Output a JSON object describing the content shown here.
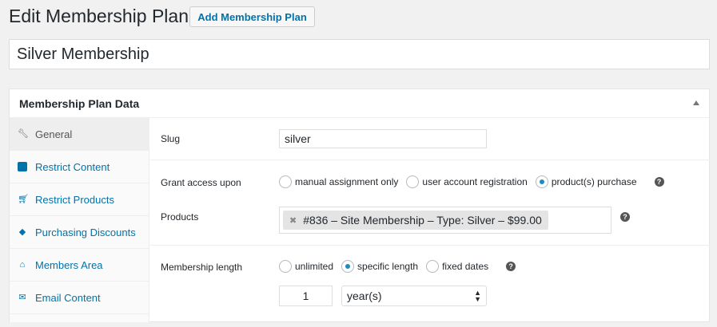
{
  "header": {
    "title": "Edit Membership Plan",
    "add_button": "Add Membership Plan"
  },
  "plan_title": "Silver Membership",
  "panel": {
    "title": "Membership Plan Data"
  },
  "tabs": [
    {
      "label": "General",
      "icon": "wrench-icon",
      "active": true
    },
    {
      "label": "Restrict Content",
      "icon": "content-icon"
    },
    {
      "label": "Restrict Products",
      "icon": "cart-icon"
    },
    {
      "label": "Purchasing Discounts",
      "icon": "tag-icon"
    },
    {
      "label": "Members Area",
      "icon": "home-icon"
    },
    {
      "label": "Email Content",
      "icon": "email-icon"
    }
  ],
  "general": {
    "slug_label": "Slug",
    "slug_value": "silver",
    "grant_label": "Grant access upon",
    "grant_options": [
      "manual assignment only",
      "user account registration",
      "product(s) purchase"
    ],
    "grant_selected": "product(s) purchase",
    "products_label": "Products",
    "products": [
      "#836 – Site Membership – Type: Silver – $99.00"
    ],
    "length_label": "Membership length",
    "length_options": [
      "unlimited",
      "specific length",
      "fixed dates"
    ],
    "length_selected": "specific length",
    "length_value": "1",
    "length_unit": "year(s)",
    "help": "?"
  }
}
